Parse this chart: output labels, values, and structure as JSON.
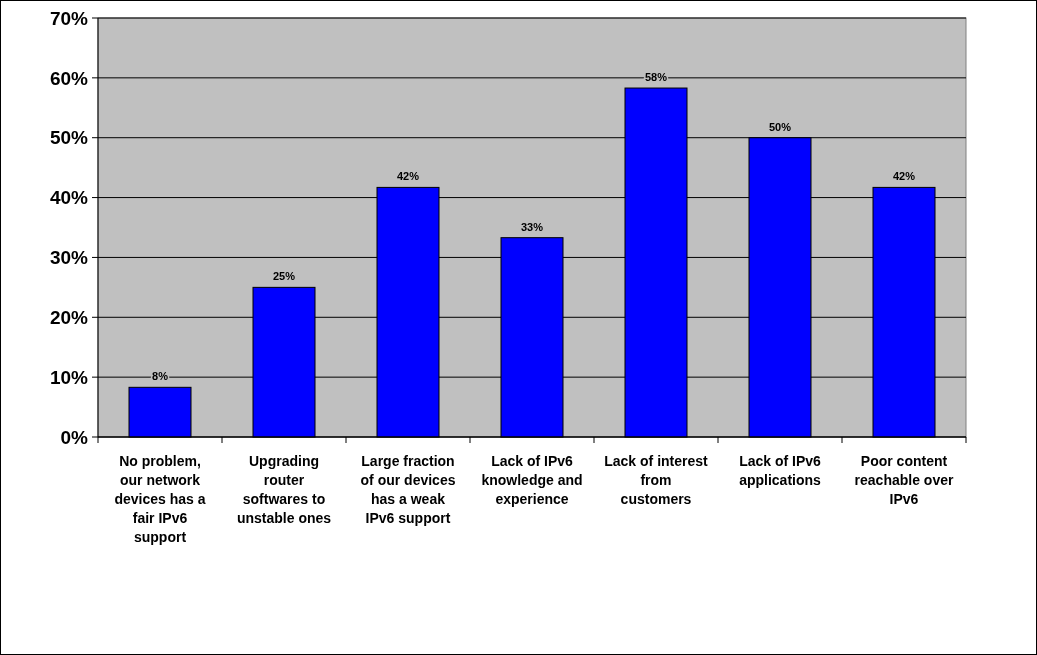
{
  "chart_data": {
    "type": "bar",
    "categories": [
      "No problem, our network devices has a fair IPv6 support",
      "Upgrading router softwares to unstable ones",
      "Large fraction of our devices has a weak IPv6 support",
      "Lack of IPv6 knowledge and experience",
      "Lack of interest from customers",
      "Lack of IPv6 applications",
      "Poor content reachable over IPv6"
    ],
    "values": [
      8.3,
      25,
      41.7,
      33.3,
      58.3,
      50,
      41.7
    ],
    "value_labels": [
      "8%",
      "25%",
      "42%",
      "33%",
      "58%",
      "50%",
      "42%"
    ],
    "color": "#0000ff",
    "ylim": [
      0,
      70
    ],
    "yticks": [
      {
        "value": 0,
        "label": "0%"
      },
      {
        "value": 10,
        "label": "10%"
      },
      {
        "value": 20,
        "label": "20%"
      },
      {
        "value": 30,
        "label": "30%"
      },
      {
        "value": 40,
        "label": "40%"
      },
      {
        "value": 50,
        "label": "50%"
      },
      {
        "value": 60,
        "label": "60%"
      },
      {
        "value": 70,
        "label": "70%"
      }
    ],
    "grid": "y"
  }
}
